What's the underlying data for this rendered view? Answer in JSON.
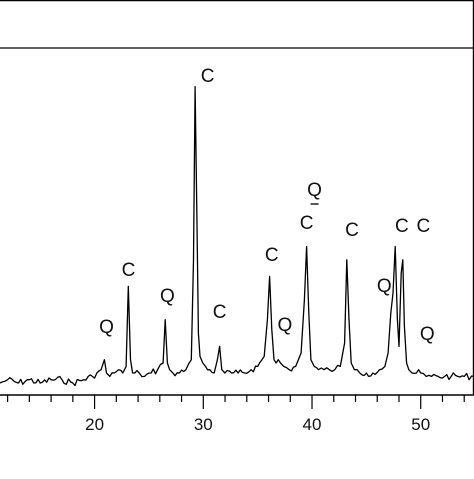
{
  "chart_data": {
    "type": "line",
    "xlabel": "",
    "ylabel": "",
    "xlim": [
      11.3,
      54.9
    ],
    "ylim": [
      0,
      100
    ],
    "grid": false,
    "legend": "none",
    "colors": {
      "line": "#000000",
      "axis": "#000000",
      "background": "#ffffff"
    },
    "x_ticks": [
      20,
      30,
      40,
      50
    ],
    "x_tick_labels": [
      "20",
      "30",
      "40",
      "50"
    ],
    "series": [
      {
        "values_x": [
          11.3,
          12,
          13,
          14,
          15,
          16,
          17,
          18,
          19,
          19.8,
          20.2,
          20.6,
          20.9,
          21.1,
          21.4,
          21.8,
          22.2,
          22.6,
          22.9,
          23.1,
          23.3,
          23.5,
          23.7,
          24.1,
          24.6,
          25.2,
          25.8,
          26.3,
          26.5,
          26.7,
          26.9,
          27.2,
          27.8,
          28.4,
          28.9,
          29.1,
          29.25,
          29.4,
          29.55,
          29.7,
          29.95,
          30.2,
          30.6,
          31.0,
          31.3,
          31.5,
          31.7,
          32.0,
          32.6,
          33.2,
          33.8,
          34.4,
          35.0,
          35.6,
          35.9,
          36.1,
          36.3,
          36.5,
          36.7,
          36.9,
          37.1,
          37.4,
          37.9,
          38.5,
          39.0,
          39.3,
          39.5,
          39.7,
          39.9,
          40.2,
          40.6,
          41.1,
          41.6,
          42.1,
          42.6,
          43.0,
          43.2,
          43.4,
          43.6,
          43.9,
          44.4,
          45.0,
          45.6,
          46.2,
          46.7,
          47.0,
          47.25,
          47.45,
          47.65,
          47.85,
          48.0,
          48.2,
          48.35,
          48.5,
          48.7,
          48.9,
          49.2,
          49.6,
          50.0,
          50.5,
          51.0,
          51.6,
          52.2,
          52.8,
          53.4,
          54.0,
          54.9
        ],
        "values_y": [
          3,
          4,
          3,
          4,
          3,
          4,
          4,
          3,
          4,
          5,
          6,
          7,
          10,
          6,
          5,
          6,
          7,
          6,
          8,
          32,
          10,
          6,
          6,
          6,
          5,
          6,
          7,
          9,
          22,
          9,
          7,
          6,
          6,
          7,
          10,
          40,
          92,
          55,
          18,
          11,
          9,
          8,
          7,
          6,
          10,
          14,
          7,
          6,
          6,
          6,
          6,
          7,
          8,
          11,
          22,
          35,
          19,
          10,
          9,
          10,
          9,
          8,
          7,
          8,
          12,
          28,
          44,
          24,
          10,
          8,
          7,
          7,
          7,
          7,
          8,
          15,
          40,
          22,
          9,
          7,
          6,
          6,
          6,
          7,
          8,
          12,
          24,
          30,
          44,
          22,
          14,
          36,
          40,
          20,
          9,
          7,
          6,
          6,
          6,
          5,
          5,
          5,
          5,
          5,
          5,
          5,
          5
        ]
      }
    ],
    "annotations": [
      {
        "text": "C",
        "x": 23.3
      },
      {
        "text": "Q",
        "x": 26.7
      },
      {
        "text": "C",
        "x": 29.4
      },
      {
        "text": "C",
        "x": 31.5
      },
      {
        "text": "C",
        "x": 36.3
      },
      {
        "text": "Q",
        "x": 37.5
      },
      {
        "text": "C",
        "x": 39.5
      },
      {
        "text": "Q",
        "x": 39.5
      },
      {
        "text": "C",
        "x": 43.4
      },
      {
        "text": "Q",
        "x": 47.2
      },
      {
        "text": "C",
        "x": 47.8
      },
      {
        "text": "C",
        "x": 48.4
      },
      {
        "text": "Q",
        "x": 50.6
      },
      {
        "text": "Q",
        "x": 21.1
      }
    ]
  }
}
